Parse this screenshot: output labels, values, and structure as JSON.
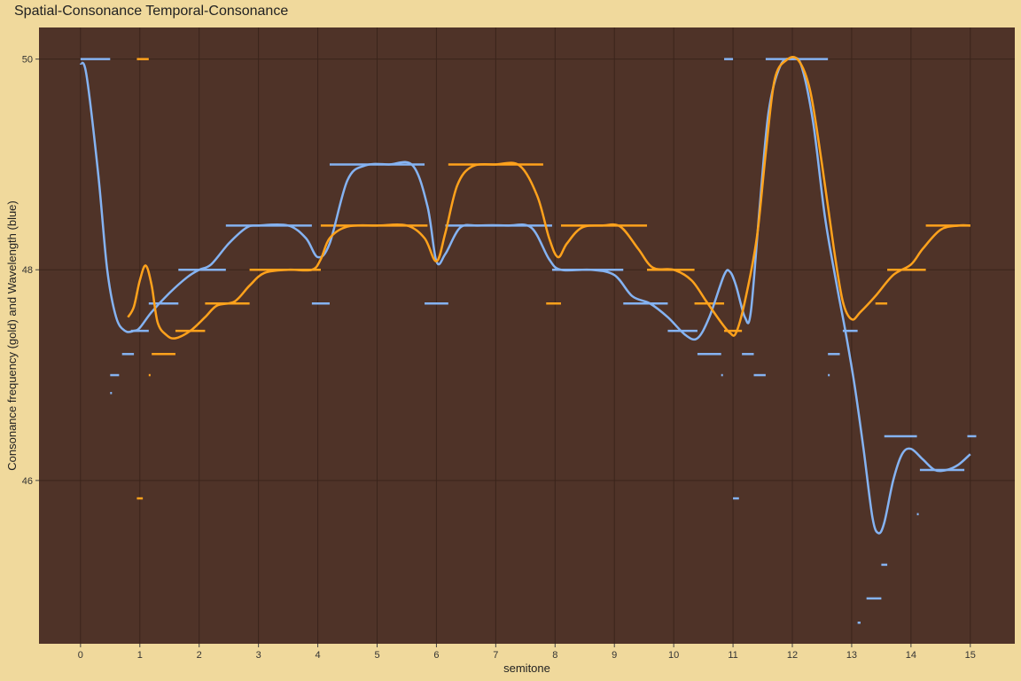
{
  "chart_data": {
    "type": "line",
    "title": "Spatial-Consonance Temporal-Consonance",
    "xlabel": "semitone",
    "ylabel": "Consonance frequency (gold) and Wavelength (blue)",
    "xlim": [
      -0.7,
      15.75
    ],
    "ylim": [
      44.45,
      50.3
    ],
    "x_ticks": [
      0,
      1,
      2,
      3,
      4,
      5,
      6,
      7,
      8,
      9,
      10,
      11,
      12,
      13,
      14,
      15
    ],
    "y_ticks": [
      46,
      48,
      50
    ],
    "grid": true,
    "legend": "none",
    "colors": {
      "panel": "#4f3328",
      "grid": "#3a241b",
      "gold": "#ffa21c",
      "blue": "#85b3f2",
      "background": "#f0d99c"
    },
    "series": [
      {
        "color": "#85b3f2",
        "points": [
          [
            0,
            49.96
          ],
          [
            0.1,
            49.85
          ],
          [
            0.3,
            48.9
          ],
          [
            0.45,
            48.0
          ],
          [
            0.6,
            47.55
          ],
          [
            0.75,
            47.42
          ],
          [
            0.9,
            47.42
          ],
          [
            1.0,
            47.45
          ],
          [
            1.2,
            47.6
          ],
          [
            1.5,
            47.78
          ],
          [
            1.8,
            47.93
          ],
          [
            2.0,
            48.0
          ],
          [
            2.2,
            48.05
          ],
          [
            2.5,
            48.25
          ],
          [
            2.8,
            48.4
          ],
          [
            3.0,
            48.42
          ],
          [
            3.5,
            48.42
          ],
          [
            3.8,
            48.3
          ],
          [
            4.0,
            48.12
          ],
          [
            4.2,
            48.25
          ],
          [
            4.5,
            48.85
          ],
          [
            4.8,
            48.99
          ],
          [
            5.2,
            49.0
          ],
          [
            5.6,
            48.99
          ],
          [
            5.85,
            48.6
          ],
          [
            6.0,
            48.08
          ],
          [
            6.15,
            48.15
          ],
          [
            6.4,
            48.4
          ],
          [
            6.7,
            48.42
          ],
          [
            7.2,
            48.42
          ],
          [
            7.6,
            48.4
          ],
          [
            7.9,
            48.1
          ],
          [
            8.1,
            48.0
          ],
          [
            8.6,
            48.0
          ],
          [
            9.0,
            47.95
          ],
          [
            9.3,
            47.75
          ],
          [
            9.6,
            47.68
          ],
          [
            9.9,
            47.55
          ],
          [
            10.2,
            47.38
          ],
          [
            10.4,
            47.35
          ],
          [
            10.6,
            47.55
          ],
          [
            10.85,
            47.95
          ],
          [
            10.95,
            47.98
          ],
          [
            11.05,
            47.85
          ],
          [
            11.2,
            47.55
          ],
          [
            11.3,
            47.6
          ],
          [
            11.45,
            48.6
          ],
          [
            11.6,
            49.5
          ],
          [
            11.8,
            49.94
          ],
          [
            12.0,
            50.0
          ],
          [
            12.15,
            49.94
          ],
          [
            12.35,
            49.4
          ],
          [
            12.55,
            48.5
          ],
          [
            12.75,
            47.85
          ],
          [
            12.9,
            47.4
          ],
          [
            13.05,
            46.9
          ],
          [
            13.2,
            46.3
          ],
          [
            13.35,
            45.65
          ],
          [
            13.45,
            45.5
          ],
          [
            13.55,
            45.6
          ],
          [
            13.7,
            46.0
          ],
          [
            13.85,
            46.25
          ],
          [
            14.0,
            46.3
          ],
          [
            14.2,
            46.2
          ],
          [
            14.4,
            46.1
          ],
          [
            14.6,
            46.1
          ],
          [
            14.8,
            46.15
          ],
          [
            15.0,
            46.25
          ]
        ]
      },
      {
        "color": "#ffa21c",
        "points": [
          [
            0.8,
            47.55
          ],
          [
            0.9,
            47.65
          ],
          [
            1.0,
            47.9
          ],
          [
            1.1,
            48.04
          ],
          [
            1.2,
            47.85
          ],
          [
            1.3,
            47.5
          ],
          [
            1.45,
            47.38
          ],
          [
            1.6,
            47.35
          ],
          [
            1.85,
            47.42
          ],
          [
            2.1,
            47.55
          ],
          [
            2.3,
            47.66
          ],
          [
            2.6,
            47.7
          ],
          [
            2.85,
            47.85
          ],
          [
            3.1,
            47.97
          ],
          [
            3.5,
            48.0
          ],
          [
            3.9,
            48.0
          ],
          [
            4.05,
            48.1
          ],
          [
            4.2,
            48.3
          ],
          [
            4.5,
            48.41
          ],
          [
            5.0,
            48.42
          ],
          [
            5.5,
            48.42
          ],
          [
            5.8,
            48.3
          ],
          [
            6.0,
            48.08
          ],
          [
            6.15,
            48.35
          ],
          [
            6.35,
            48.8
          ],
          [
            6.6,
            48.98
          ],
          [
            7.0,
            49.0
          ],
          [
            7.4,
            48.99
          ],
          [
            7.7,
            48.7
          ],
          [
            7.9,
            48.3
          ],
          [
            8.05,
            48.12
          ],
          [
            8.2,
            48.25
          ],
          [
            8.45,
            48.4
          ],
          [
            8.8,
            48.42
          ],
          [
            9.1,
            48.41
          ],
          [
            9.4,
            48.2
          ],
          [
            9.65,
            48.02
          ],
          [
            10.0,
            48.0
          ],
          [
            10.3,
            47.9
          ],
          [
            10.55,
            47.7
          ],
          [
            10.8,
            47.5
          ],
          [
            10.95,
            47.4
          ],
          [
            11.05,
            47.4
          ],
          [
            11.2,
            47.7
          ],
          [
            11.4,
            48.3
          ],
          [
            11.55,
            49.1
          ],
          [
            11.7,
            49.8
          ],
          [
            11.9,
            49.99
          ],
          [
            12.1,
            49.99
          ],
          [
            12.3,
            49.7
          ],
          [
            12.5,
            49.0
          ],
          [
            12.7,
            48.2
          ],
          [
            12.85,
            47.7
          ],
          [
            13.0,
            47.53
          ],
          [
            13.15,
            47.6
          ],
          [
            13.4,
            47.75
          ],
          [
            13.7,
            47.95
          ],
          [
            14.0,
            48.05
          ],
          [
            14.2,
            48.2
          ],
          [
            14.5,
            48.38
          ],
          [
            14.8,
            48.42
          ],
          [
            15.0,
            48.42
          ]
        ]
      }
    ],
    "marker_segments": [
      {
        "color": "#85b3f2",
        "x0": 0,
        "x1": 0.5,
        "y": 50.0
      },
      {
        "color": "#85b3f2",
        "x0": 0.7,
        "x1": 0.9,
        "y": 47.2
      },
      {
        "color": "#85b3f2",
        "x0": 0.5,
        "x1": 0.65,
        "y": 47.0
      },
      {
        "color": "#85b3f2",
        "x0": 0.5,
        "x1": 0.52,
        "y": 46.83
      },
      {
        "color": "#85b3f2",
        "x0": 0.85,
        "x1": 1.15,
        "y": 47.42
      },
      {
        "color": "#85b3f2",
        "x0": 1.15,
        "x1": 1.65,
        "y": 47.68
      },
      {
        "color": "#85b3f2",
        "x0": 1.65,
        "x1": 2.45,
        "y": 48.0
      },
      {
        "color": "#85b3f2",
        "x0": 2.45,
        "x1": 3.9,
        "y": 48.42
      },
      {
        "color": "#85b3f2",
        "x0": 3.9,
        "x1": 4.2,
        "y": 47.68
      },
      {
        "color": "#85b3f2",
        "x0": 4.2,
        "x1": 5.8,
        "y": 49.0
      },
      {
        "color": "#85b3f2",
        "x0": 5.8,
        "x1": 6.2,
        "y": 47.68
      },
      {
        "color": "#85b3f2",
        "x0": 6.15,
        "x1": 7.95,
        "y": 48.42
      },
      {
        "color": "#85b3f2",
        "x0": 7.95,
        "x1": 9.15,
        "y": 48.0
      },
      {
        "color": "#85b3f2",
        "x0": 9.15,
        "x1": 9.9,
        "y": 47.68
      },
      {
        "color": "#85b3f2",
        "x0": 9.9,
        "x1": 10.4,
        "y": 47.42
      },
      {
        "color": "#85b3f2",
        "x0": 10.4,
        "x1": 10.8,
        "y": 47.2
      },
      {
        "color": "#85b3f2",
        "x0": 10.8,
        "x1": 10.82,
        "y": 47.0
      },
      {
        "color": "#85b3f2",
        "x0": 10.85,
        "x1": 11.0,
        "y": 50.0
      },
      {
        "color": "#85b3f2",
        "x0": 11.0,
        "x1": 11.1,
        "y": 45.83
      },
      {
        "color": "#85b3f2",
        "x0": 11.15,
        "x1": 11.35,
        "y": 47.2
      },
      {
        "color": "#85b3f2",
        "x0": 11.35,
        "x1": 11.55,
        "y": 47.0
      },
      {
        "color": "#85b3f2",
        "x0": 11.55,
        "x1": 12.6,
        "y": 50.0
      },
      {
        "color": "#85b3f2",
        "x0": 12.6,
        "x1": 12.62,
        "y": 47.0
      },
      {
        "color": "#85b3f2",
        "x0": 12.6,
        "x1": 12.8,
        "y": 47.2
      },
      {
        "color": "#85b3f2",
        "x0": 12.85,
        "x1": 13.1,
        "y": 47.42
      },
      {
        "color": "#85b3f2",
        "x0": 13.1,
        "x1": 13.15,
        "y": 44.65
      },
      {
        "color": "#85b3f2",
        "x0": 13.25,
        "x1": 13.5,
        "y": 44.88
      },
      {
        "color": "#85b3f2",
        "x0": 13.5,
        "x1": 13.6,
        "y": 45.2
      },
      {
        "color": "#85b3f2",
        "x0": 13.55,
        "x1": 14.1,
        "y": 46.42
      },
      {
        "color": "#85b3f2",
        "x0": 14.1,
        "x1": 14.12,
        "y": 45.68
      },
      {
        "color": "#85b3f2",
        "x0": 14.15,
        "x1": 14.9,
        "y": 46.1
      },
      {
        "color": "#85b3f2",
        "x0": 14.95,
        "x1": 15.1,
        "y": 46.42
      },
      {
        "color": "#ffa21c",
        "x0": 0.95,
        "x1": 1.15,
        "y": 50.0
      },
      {
        "color": "#ffa21c",
        "x0": 0.95,
        "x1": 1.05,
        "y": 45.83
      },
      {
        "color": "#ffa21c",
        "x0": 1.15,
        "x1": 1.18,
        "y": 47.0
      },
      {
        "color": "#ffa21c",
        "x0": 1.2,
        "x1": 1.6,
        "y": 47.2
      },
      {
        "color": "#ffa21c",
        "x0": 1.6,
        "x1": 2.1,
        "y": 47.42
      },
      {
        "color": "#ffa21c",
        "x0": 2.1,
        "x1": 2.85,
        "y": 47.68
      },
      {
        "color": "#ffa21c",
        "x0": 2.85,
        "x1": 4.05,
        "y": 48.0
      },
      {
        "color": "#ffa21c",
        "x0": 4.05,
        "x1": 5.85,
        "y": 48.42
      },
      {
        "color": "#ffa21c",
        "x0": 6.2,
        "x1": 7.8,
        "y": 49.0
      },
      {
        "color": "#ffa21c",
        "x0": 7.85,
        "x1": 8.1,
        "y": 47.68
      },
      {
        "color": "#ffa21c",
        "x0": 8.1,
        "x1": 9.55,
        "y": 48.42
      },
      {
        "color": "#ffa21c",
        "x0": 9.55,
        "x1": 10.35,
        "y": 48.0
      },
      {
        "color": "#ffa21c",
        "x0": 10.35,
        "x1": 10.85,
        "y": 47.68
      },
      {
        "color": "#ffa21c",
        "x0": 10.85,
        "x1": 11.15,
        "y": 47.42
      },
      {
        "color": "#ffa21c",
        "x0": 13.4,
        "x1": 13.6,
        "y": 47.68
      },
      {
        "color": "#ffa21c",
        "x0": 13.6,
        "x1": 14.25,
        "y": 48.0
      },
      {
        "color": "#ffa21c",
        "x0": 14.25,
        "x1": 15.0,
        "y": 48.42
      }
    ]
  }
}
